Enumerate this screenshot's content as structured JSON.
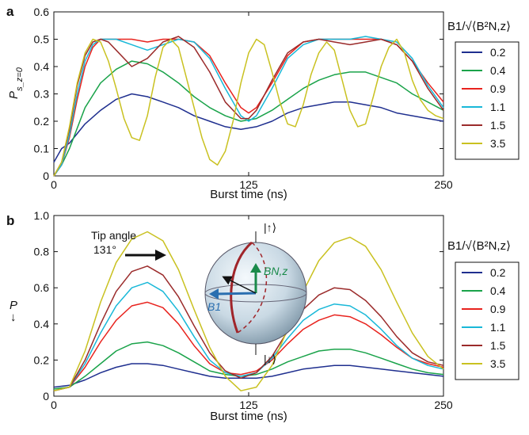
{
  "chart_data": [
    {
      "panel": "a",
      "type": "line",
      "xlabel": "Burst time (ns)",
      "ylabel_main": "P",
      "ylabel_sub": "s_z=0",
      "xlim": [
        0,
        250
      ],
      "ylim": [
        0,
        0.6
      ],
      "xticks": [
        "0",
        "125",
        "250"
      ],
      "yticks": [
        "0",
        "0.1",
        "0.2",
        "0.3",
        "0.4",
        "0.5",
        "0.6"
      ],
      "legend_title": "B1/√⟨B²N,z⟩",
      "legend_position": "right",
      "series": [
        {
          "name": "0.2",
          "color": "#1f2f8f",
          "x": [
            0,
            5,
            10,
            20,
            30,
            40,
            50,
            60,
            70,
            80,
            90,
            100,
            110,
            120,
            130,
            140,
            150,
            160,
            170,
            180,
            190,
            200,
            210,
            220,
            230,
            240,
            250
          ],
          "values": [
            0.05,
            0.1,
            0.12,
            0.19,
            0.24,
            0.28,
            0.3,
            0.29,
            0.27,
            0.25,
            0.22,
            0.2,
            0.18,
            0.17,
            0.18,
            0.2,
            0.23,
            0.25,
            0.26,
            0.27,
            0.27,
            0.26,
            0.25,
            0.23,
            0.22,
            0.21,
            0.2
          ]
        },
        {
          "name": "0.4",
          "color": "#1aa34a",
          "x": [
            0,
            5,
            10,
            20,
            30,
            40,
            50,
            60,
            70,
            80,
            90,
            100,
            110,
            120,
            130,
            140,
            150,
            160,
            170,
            180,
            190,
            200,
            210,
            220,
            230,
            240,
            250
          ],
          "values": [
            0.0,
            0.04,
            0.1,
            0.25,
            0.34,
            0.39,
            0.42,
            0.41,
            0.38,
            0.34,
            0.29,
            0.25,
            0.22,
            0.2,
            0.21,
            0.24,
            0.28,
            0.32,
            0.35,
            0.37,
            0.38,
            0.38,
            0.36,
            0.34,
            0.3,
            0.27,
            0.24
          ]
        },
        {
          "name": "0.9",
          "color": "#e8231e",
          "x": [
            0,
            5,
            10,
            15,
            20,
            25,
            30,
            35,
            40,
            50,
            60,
            70,
            80,
            90,
            100,
            110,
            120,
            125,
            130,
            140,
            150,
            160,
            170,
            180,
            190,
            200,
            210,
            220,
            230,
            240,
            250
          ],
          "values": [
            0.0,
            0.04,
            0.14,
            0.28,
            0.4,
            0.47,
            0.5,
            0.5,
            0.5,
            0.5,
            0.49,
            0.5,
            0.5,
            0.49,
            0.44,
            0.34,
            0.25,
            0.23,
            0.25,
            0.34,
            0.44,
            0.49,
            0.5,
            0.5,
            0.5,
            0.5,
            0.5,
            0.48,
            0.42,
            0.34,
            0.27
          ]
        },
        {
          "name": "1.1",
          "color": "#19b8d8",
          "x": [
            0,
            5,
            10,
            15,
            20,
            25,
            30,
            35,
            40,
            50,
            60,
            70,
            80,
            90,
            100,
            110,
            120,
            125,
            130,
            140,
            150,
            160,
            170,
            180,
            190,
            200,
            210,
            220,
            230,
            240,
            250
          ],
          "values": [
            0.0,
            0.04,
            0.15,
            0.3,
            0.42,
            0.48,
            0.5,
            0.5,
            0.5,
            0.48,
            0.46,
            0.48,
            0.5,
            0.49,
            0.43,
            0.32,
            0.22,
            0.2,
            0.22,
            0.32,
            0.43,
            0.48,
            0.5,
            0.5,
            0.5,
            0.51,
            0.5,
            0.49,
            0.43,
            0.33,
            0.25
          ]
        },
        {
          "name": "1.5",
          "color": "#9b2b2b",
          "x": [
            0,
            5,
            10,
            15,
            20,
            25,
            30,
            35,
            40,
            50,
            60,
            70,
            80,
            90,
            100,
            110,
            120,
            125,
            130,
            140,
            150,
            160,
            170,
            180,
            190,
            200,
            210,
            220,
            230,
            240,
            250
          ],
          "values": [
            0.0,
            0.05,
            0.17,
            0.33,
            0.44,
            0.49,
            0.5,
            0.49,
            0.46,
            0.4,
            0.43,
            0.49,
            0.51,
            0.47,
            0.38,
            0.27,
            0.21,
            0.21,
            0.24,
            0.35,
            0.45,
            0.49,
            0.5,
            0.49,
            0.48,
            0.49,
            0.5,
            0.48,
            0.42,
            0.32,
            0.24
          ]
        },
        {
          "name": "3.5",
          "color": "#c9c120",
          "x": [
            0,
            5,
            10,
            15,
            20,
            25,
            30,
            35,
            40,
            45,
            50,
            55,
            60,
            65,
            70,
            75,
            80,
            85,
            90,
            95,
            100,
            105,
            110,
            115,
            120,
            125,
            130,
            135,
            140,
            145,
            150,
            155,
            160,
            165,
            170,
            175,
            180,
            185,
            190,
            195,
            200,
            205,
            210,
            215,
            220,
            225,
            230,
            235,
            240,
            245,
            250
          ],
          "values": [
            0.0,
            0.05,
            0.18,
            0.34,
            0.45,
            0.5,
            0.49,
            0.42,
            0.32,
            0.21,
            0.14,
            0.13,
            0.22,
            0.36,
            0.47,
            0.5,
            0.47,
            0.36,
            0.25,
            0.14,
            0.06,
            0.04,
            0.09,
            0.2,
            0.34,
            0.45,
            0.5,
            0.48,
            0.38,
            0.27,
            0.19,
            0.18,
            0.26,
            0.37,
            0.45,
            0.49,
            0.46,
            0.35,
            0.24,
            0.18,
            0.19,
            0.29,
            0.4,
            0.47,
            0.5,
            0.45,
            0.35,
            0.28,
            0.24,
            0.22,
            0.21
          ]
        }
      ]
    },
    {
      "panel": "b",
      "type": "line",
      "xlabel": "Burst time (ns)",
      "ylabel_main": "P",
      "ylabel_sub": "↓",
      "xlim": [
        0,
        250
      ],
      "ylim": [
        0,
        1.0
      ],
      "xticks": [
        "0",
        "125",
        "250"
      ],
      "yticks": [
        "0",
        "0.2",
        "0.4",
        "0.6",
        "0.8",
        "1.0"
      ],
      "legend_title": "B1/√⟨B²N,z⟩",
      "legend_position": "right",
      "annotations": {
        "tip_line1": "Tip angle",
        "tip_line2": "131°"
      },
      "inset_labels": {
        "up": "|↑⟩",
        "down": "|↓⟩",
        "bnz": "BN,z",
        "b1": "B1"
      },
      "series": [
        {
          "name": "0.2",
          "color": "#1f2f8f",
          "x": [
            0,
            10,
            20,
            30,
            40,
            50,
            60,
            70,
            80,
            90,
            100,
            110,
            120,
            130,
            140,
            150,
            160,
            170,
            180,
            190,
            200,
            210,
            220,
            230,
            240,
            250
          ],
          "values": [
            0.05,
            0.06,
            0.09,
            0.13,
            0.16,
            0.18,
            0.18,
            0.17,
            0.15,
            0.13,
            0.11,
            0.1,
            0.1,
            0.1,
            0.11,
            0.13,
            0.15,
            0.16,
            0.17,
            0.17,
            0.16,
            0.15,
            0.14,
            0.13,
            0.12,
            0.11
          ]
        },
        {
          "name": "0.4",
          "color": "#1aa34a",
          "x": [
            0,
            10,
            20,
            30,
            40,
            50,
            60,
            70,
            80,
            90,
            100,
            110,
            120,
            130,
            140,
            150,
            160,
            170,
            180,
            190,
            200,
            210,
            220,
            230,
            240,
            250
          ],
          "values": [
            0.04,
            0.05,
            0.11,
            0.18,
            0.25,
            0.29,
            0.3,
            0.28,
            0.24,
            0.19,
            0.14,
            0.12,
            0.11,
            0.12,
            0.15,
            0.19,
            0.22,
            0.25,
            0.26,
            0.26,
            0.24,
            0.21,
            0.18,
            0.15,
            0.13,
            0.12
          ]
        },
        {
          "name": "0.9",
          "color": "#e8231e",
          "x": [
            0,
            10,
            20,
            30,
            40,
            50,
            60,
            70,
            80,
            90,
            100,
            110,
            120,
            130,
            140,
            150,
            160,
            170,
            180,
            190,
            200,
            210,
            220,
            230,
            240,
            250
          ],
          "values": [
            0.03,
            0.05,
            0.16,
            0.3,
            0.42,
            0.5,
            0.52,
            0.49,
            0.4,
            0.28,
            0.18,
            0.13,
            0.12,
            0.14,
            0.2,
            0.29,
            0.37,
            0.42,
            0.45,
            0.44,
            0.4,
            0.34,
            0.27,
            0.21,
            0.18,
            0.16
          ]
        },
        {
          "name": "1.1",
          "color": "#19b8d8",
          "x": [
            0,
            10,
            20,
            30,
            40,
            50,
            60,
            70,
            80,
            90,
            100,
            110,
            120,
            130,
            140,
            150,
            160,
            170,
            180,
            190,
            200,
            210,
            220,
            230,
            240,
            250
          ],
          "values": [
            0.03,
            0.05,
            0.18,
            0.35,
            0.5,
            0.6,
            0.63,
            0.58,
            0.47,
            0.33,
            0.2,
            0.13,
            0.11,
            0.13,
            0.21,
            0.32,
            0.42,
            0.48,
            0.51,
            0.5,
            0.45,
            0.37,
            0.28,
            0.21,
            0.17,
            0.15
          ]
        },
        {
          "name": "1.5",
          "color": "#9b2b2b",
          "x": [
            0,
            10,
            20,
            30,
            40,
            50,
            60,
            70,
            80,
            90,
            100,
            110,
            120,
            130,
            140,
            150,
            160,
            170,
            180,
            190,
            200,
            210,
            220,
            230,
            240,
            250
          ],
          "values": [
            0.03,
            0.05,
            0.2,
            0.4,
            0.58,
            0.69,
            0.72,
            0.67,
            0.55,
            0.39,
            0.24,
            0.14,
            0.1,
            0.13,
            0.22,
            0.36,
            0.48,
            0.56,
            0.6,
            0.59,
            0.53,
            0.44,
            0.33,
            0.24,
            0.19,
            0.17
          ]
        },
        {
          "name": "3.5",
          "color": "#c9c120",
          "x": [
            0,
            10,
            20,
            30,
            40,
            50,
            60,
            70,
            80,
            90,
            100,
            110,
            120,
            130,
            140,
            150,
            160,
            170,
            180,
            190,
            200,
            210,
            220,
            230,
            240,
            250
          ],
          "values": [
            0.03,
            0.05,
            0.25,
            0.52,
            0.74,
            0.87,
            0.91,
            0.86,
            0.7,
            0.48,
            0.27,
            0.11,
            0.03,
            0.05,
            0.17,
            0.37,
            0.58,
            0.75,
            0.85,
            0.88,
            0.83,
            0.7,
            0.52,
            0.35,
            0.22,
            0.15
          ]
        }
      ]
    }
  ]
}
